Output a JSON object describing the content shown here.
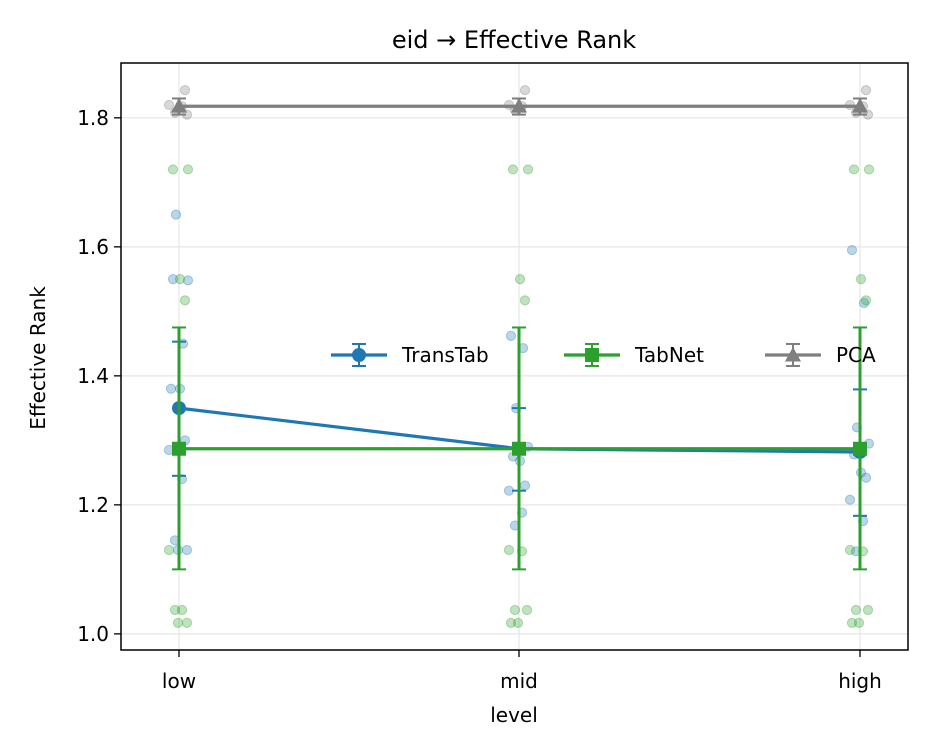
{
  "chart_data": {
    "type": "line",
    "title": "eid → Effective Rank",
    "xlabel": "level",
    "ylabel": "Effective Rank",
    "categories": [
      "low",
      "mid",
      "high"
    ],
    "ylim": [
      0.975,
      1.885
    ],
    "yticks": [
      "1.0",
      "1.2",
      "1.4",
      "1.6",
      "1.8"
    ],
    "grid": true,
    "legend_position": "center-right",
    "series": [
      {
        "name": "TransTab",
        "color": "#1f77b4",
        "marker": "circle",
        "values": [
          1.35,
          1.287,
          1.282
        ],
        "err_low": [
          1.245,
          1.222,
          1.183
        ],
        "err_high": [
          1.453,
          1.35,
          1.379
        ],
        "points": [
          [
            1.38,
            1.45,
            1.65,
            1.548,
            1.55,
            1.38,
            1.3,
            1.285,
            1.24,
            1.145,
            1.13,
            1.13
          ],
          [
            1.462,
            1.443,
            1.35,
            1.29,
            1.275,
            1.268,
            1.23,
            1.222,
            1.188,
            1.168
          ],
          [
            1.595,
            1.513,
            1.32,
            1.295,
            1.278,
            1.25,
            1.242,
            1.208,
            1.175,
            1.128
          ]
        ]
      },
      {
        "name": "TabNet",
        "color": "#2ca02c",
        "marker": "square",
        "values": [
          1.287,
          1.287,
          1.287
        ],
        "err_low": [
          1.1,
          1.1,
          1.1
        ],
        "err_high": [
          1.475,
          1.475,
          1.475
        ],
        "points": [
          [
            1.72,
            1.72,
            1.55,
            1.517,
            1.13,
            1.037,
            1.037,
            1.017,
            1.017
          ],
          [
            1.72,
            1.72,
            1.55,
            1.517,
            1.13,
            1.128,
            1.037,
            1.037,
            1.017,
            1.017
          ],
          [
            1.72,
            1.72,
            1.55,
            1.517,
            1.13,
            1.128,
            1.037,
            1.037,
            1.017,
            1.017
          ]
        ]
      },
      {
        "name": "PCA",
        "color": "#7f7f7f",
        "marker": "triangle",
        "values": [
          1.818,
          1.818,
          1.818
        ],
        "err_low": [
          1.805,
          1.805,
          1.805
        ],
        "err_high": [
          1.83,
          1.83,
          1.83
        ],
        "points": [
          [
            1.843,
            1.82,
            1.818,
            1.808,
            1.805
          ],
          [
            1.843,
            1.82,
            1.818,
            1.812
          ],
          [
            1.843,
            1.82,
            1.818,
            1.808,
            1.805
          ]
        ]
      }
    ]
  }
}
